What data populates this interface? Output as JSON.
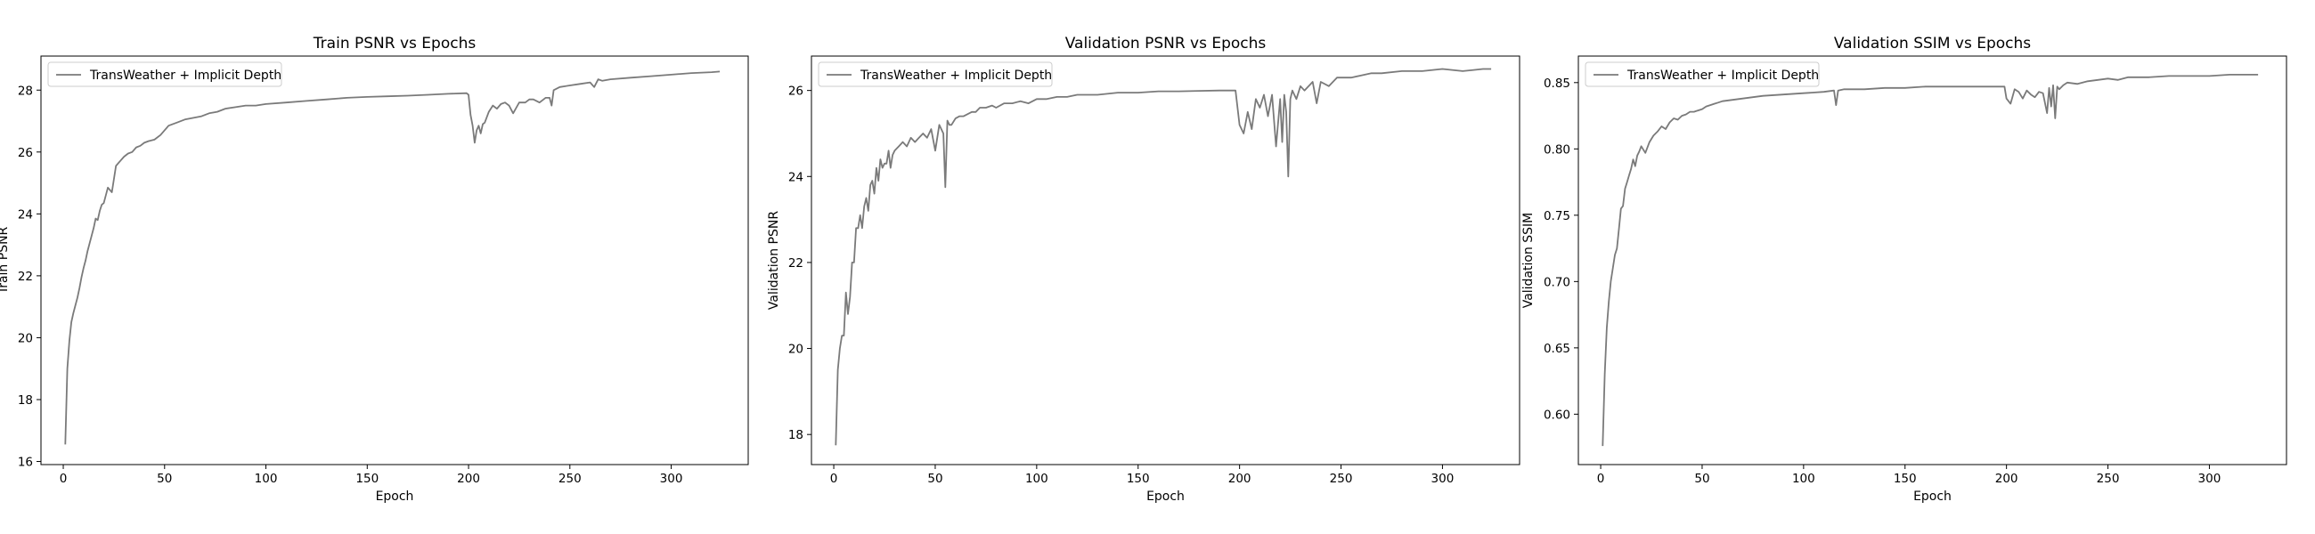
{
  "figure": {
    "series_name": "TransWeather + Implicit Depth",
    "line_color": "#7a7a7a"
  },
  "chart_data": [
    {
      "type": "line",
      "title": "Train PSNR vs Epochs",
      "xlabel": "Epoch",
      "ylabel": "Train PSNR",
      "xlim": [
        -11,
        338
      ],
      "ylim": [
        15.9,
        29.1
      ],
      "xticks": [
        0,
        50,
        100,
        150,
        200,
        250,
        300
      ],
      "yticks": [
        16,
        18,
        20,
        22,
        24,
        26,
        28
      ],
      "grid": false,
      "legend": "upper-left",
      "series": [
        {
          "name": "TransWeather + Implicit Depth",
          "x": [
            1,
            2,
            3,
            4,
            5,
            6,
            7,
            8,
            9,
            10,
            11,
            12,
            13,
            14,
            15,
            16,
            17,
            18,
            19,
            20,
            22,
            24,
            26,
            28,
            30,
            32,
            34,
            36,
            38,
            40,
            42,
            45,
            48,
            52,
            56,
            60,
            64,
            68,
            72,
            76,
            80,
            85,
            90,
            95,
            100,
            110,
            120,
            130,
            140,
            150,
            160,
            170,
            180,
            190,
            199,
            200,
            201,
            202,
            203,
            204,
            205,
            206,
            207,
            208,
            210,
            212,
            214,
            216,
            218,
            220,
            222,
            225,
            228,
            230,
            232,
            235,
            238,
            240,
            241,
            242,
            245,
            250,
            255,
            260,
            262,
            264,
            266,
            270,
            280,
            290,
            300,
            310,
            320,
            324
          ],
          "y": [
            16.55,
            19.0,
            19.9,
            20.5,
            20.8,
            21.05,
            21.3,
            21.6,
            21.95,
            22.25,
            22.5,
            22.8,
            23.05,
            23.3,
            23.55,
            23.85,
            23.8,
            24.1,
            24.3,
            24.35,
            24.85,
            24.7,
            25.55,
            25.7,
            25.85,
            25.95,
            26.0,
            26.15,
            26.2,
            26.3,
            26.35,
            26.4,
            26.55,
            26.85,
            26.95,
            27.05,
            27.1,
            27.15,
            27.25,
            27.3,
            27.4,
            27.45,
            27.5,
            27.5,
            27.55,
            27.6,
            27.65,
            27.7,
            27.75,
            27.78,
            27.8,
            27.82,
            27.85,
            27.88,
            27.9,
            27.85,
            27.2,
            26.85,
            26.3,
            26.7,
            26.85,
            26.6,
            26.9,
            26.95,
            27.3,
            27.5,
            27.4,
            27.55,
            27.6,
            27.5,
            27.25,
            27.6,
            27.6,
            27.7,
            27.7,
            27.6,
            27.75,
            27.75,
            27.5,
            28.0,
            28.1,
            28.15,
            28.2,
            28.25,
            28.1,
            28.35,
            28.3,
            28.35,
            28.4,
            28.45,
            28.5,
            28.55,
            28.58,
            28.6
          ]
        }
      ]
    },
    {
      "type": "line",
      "title": "Validation PSNR vs Epochs",
      "xlabel": "Epoch",
      "ylabel": "Validation PSNR",
      "xlim": [
        -11,
        338
      ],
      "ylim": [
        17.3,
        26.8
      ],
      "xticks": [
        0,
        50,
        100,
        150,
        200,
        250,
        300
      ],
      "yticks": [
        18,
        20,
        22,
        24,
        26
      ],
      "grid": false,
      "legend": "upper-left",
      "series": [
        {
          "name": "TransWeather + Implicit Depth",
          "x": [
            1,
            2,
            3,
            4,
            5,
            6,
            7,
            8,
            9,
            10,
            11,
            12,
            13,
            14,
            15,
            16,
            17,
            18,
            19,
            20,
            21,
            22,
            23,
            24,
            25,
            26,
            27,
            28,
            29,
            30,
            32,
            34,
            36,
            38,
            40,
            42,
            44,
            46,
            48,
            50,
            52,
            54,
            55,
            56,
            57,
            58,
            60,
            62,
            64,
            66,
            68,
            70,
            72,
            75,
            78,
            80,
            84,
            88,
            92,
            96,
            100,
            105,
            110,
            115,
            120,
            130,
            140,
            150,
            160,
            170,
            180,
            190,
            198,
            200,
            202,
            204,
            206,
            208,
            210,
            212,
            214,
            216,
            218,
            220,
            221,
            222,
            223,
            224,
            225,
            226,
            228,
            230,
            232,
            236,
            238,
            240,
            244,
            248,
            250,
            255,
            260,
            265,
            270,
            280,
            290,
            300,
            310,
            320,
            324
          ],
          "y": [
            17.75,
            19.5,
            20.0,
            20.3,
            20.3,
            21.3,
            20.8,
            21.2,
            22.0,
            22.0,
            22.8,
            22.8,
            23.1,
            22.8,
            23.3,
            23.5,
            23.2,
            23.8,
            23.9,
            23.6,
            24.2,
            23.9,
            24.4,
            24.2,
            24.3,
            24.3,
            24.6,
            24.2,
            24.5,
            24.6,
            24.7,
            24.8,
            24.7,
            24.9,
            24.8,
            24.9,
            25.0,
            24.9,
            25.1,
            24.6,
            25.2,
            25.0,
            23.75,
            25.3,
            25.2,
            25.2,
            25.35,
            25.4,
            25.4,
            25.45,
            25.5,
            25.5,
            25.6,
            25.6,
            25.65,
            25.6,
            25.7,
            25.7,
            25.75,
            25.7,
            25.8,
            25.8,
            25.85,
            25.85,
            25.9,
            25.9,
            25.95,
            25.95,
            25.98,
            25.98,
            25.99,
            26.0,
            26.0,
            25.2,
            25.0,
            25.5,
            25.1,
            25.8,
            25.6,
            25.9,
            25.4,
            25.9,
            24.7,
            25.8,
            24.8,
            25.9,
            25.5,
            24.0,
            25.8,
            26.0,
            25.8,
            26.1,
            26.0,
            26.2,
            25.7,
            26.2,
            26.1,
            26.3,
            26.3,
            26.3,
            26.35,
            26.4,
            26.4,
            26.45,
            26.45,
            26.5,
            26.45,
            26.5,
            26.5
          ]
        }
      ]
    },
    {
      "type": "line",
      "title": "Validation SSIM vs Epochs",
      "xlabel": "Epoch",
      "ylabel": "Validation SSIM",
      "xlim": [
        -11,
        338
      ],
      "ylim": [
        0.562,
        0.87
      ],
      "xticks": [
        0,
        50,
        100,
        150,
        200,
        250,
        300
      ],
      "yticks": [
        0.6,
        0.65,
        0.7,
        0.75,
        0.8,
        0.85
      ],
      "grid": false,
      "legend": "upper-left",
      "series": [
        {
          "name": "TransWeather + Implicit Depth",
          "x": [
            1,
            2,
            3,
            4,
            5,
            6,
            7,
            8,
            9,
            10,
            11,
            12,
            13,
            14,
            15,
            16,
            17,
            18,
            19,
            20,
            22,
            24,
            26,
            28,
            30,
            32,
            34,
            36,
            38,
            40,
            42,
            44,
            46,
            48,
            50,
            52,
            54,
            56,
            58,
            60,
            65,
            70,
            75,
            80,
            90,
            100,
            110,
            115,
            116,
            117,
            120,
            130,
            140,
            150,
            160,
            170,
            180,
            190,
            199,
            200,
            202,
            204,
            206,
            208,
            210,
            212,
            214,
            216,
            218,
            220,
            221,
            222,
            223,
            224,
            225,
            226,
            228,
            230,
            235,
            240,
            245,
            250,
            255,
            260,
            270,
            280,
            290,
            300,
            310,
            320,
            324
          ],
          "y": [
            0.576,
            0.63,
            0.665,
            0.685,
            0.7,
            0.71,
            0.72,
            0.725,
            0.74,
            0.755,
            0.757,
            0.77,
            0.775,
            0.78,
            0.785,
            0.792,
            0.787,
            0.795,
            0.798,
            0.802,
            0.797,
            0.805,
            0.81,
            0.813,
            0.817,
            0.815,
            0.82,
            0.823,
            0.822,
            0.825,
            0.826,
            0.828,
            0.828,
            0.829,
            0.83,
            0.832,
            0.833,
            0.834,
            0.835,
            0.836,
            0.837,
            0.838,
            0.839,
            0.84,
            0.841,
            0.842,
            0.843,
            0.844,
            0.833,
            0.844,
            0.845,
            0.845,
            0.846,
            0.846,
            0.847,
            0.847,
            0.847,
            0.847,
            0.847,
            0.838,
            0.834,
            0.845,
            0.843,
            0.838,
            0.844,
            0.841,
            0.839,
            0.843,
            0.842,
            0.827,
            0.846,
            0.832,
            0.848,
            0.823,
            0.847,
            0.845,
            0.848,
            0.85,
            0.849,
            0.851,
            0.852,
            0.853,
            0.852,
            0.854,
            0.854,
            0.855,
            0.855,
            0.855,
            0.856,
            0.856,
            0.856
          ]
        }
      ]
    }
  ]
}
